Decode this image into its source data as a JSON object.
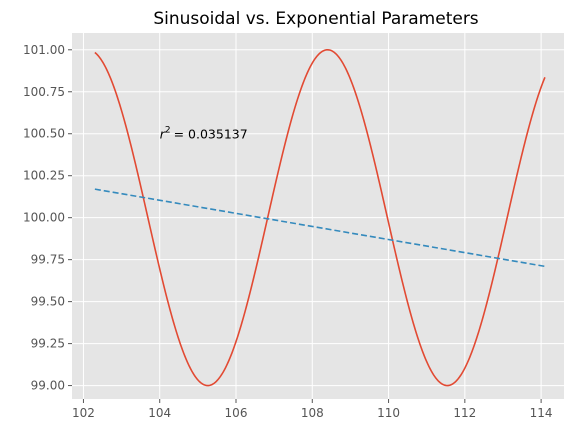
{
  "chart_data": {
    "type": "line",
    "title": "Sinusoidal vs. Exponential Parameters",
    "xlabel": "",
    "ylabel": "",
    "xlim": [
      101.7,
      114.6
    ],
    "ylim": [
      98.92,
      101.1
    ],
    "x_ticks": [
      102,
      104,
      106,
      108,
      110,
      112,
      114
    ],
    "x_tick_labels": [
      "102",
      "104",
      "106",
      "108",
      "110",
      "112",
      "114"
    ],
    "y_ticks": [
      99.0,
      99.25,
      99.5,
      99.75,
      100.0,
      100.25,
      100.5,
      100.75,
      101.0
    ],
    "y_tick_labels": [
      "99.00",
      "99.25",
      "99.50",
      "99.75",
      "100.00",
      "100.25",
      "100.50",
      "100.75",
      "101.00"
    ],
    "grid": true,
    "style": "ggplot",
    "series": [
      {
        "style": "solid",
        "color": "#E24A33",
        "curve": "sinusoid",
        "x_start": 102.3,
        "x_end": 114.1,
        "amplitude": 1.0,
        "center": 100.0,
        "period": 6.28,
        "peak_x": 108.4,
        "points": [
          [
            102.3,
            100.98
          ],
          [
            103.2,
            100.57
          ],
          [
            104.0,
            99.65
          ],
          [
            104.7,
            99.12
          ],
          [
            105.2,
            99.0
          ],
          [
            106.0,
            99.35
          ],
          [
            106.8,
            100.0
          ],
          [
            107.6,
            100.76
          ],
          [
            108.4,
            101.0
          ],
          [
            109.2,
            100.72
          ],
          [
            110.0,
            100.0
          ],
          [
            110.8,
            99.3
          ],
          [
            111.55,
            99.0
          ],
          [
            112.3,
            99.34
          ],
          [
            113.2,
            100.17
          ],
          [
            114.1,
            100.83
          ]
        ]
      },
      {
        "style": "dashed",
        "color": "#348ABD",
        "curve": "linear",
        "points": [
          [
            102.3,
            100.17
          ],
          [
            114.1,
            99.71
          ]
        ]
      }
    ],
    "annotations": [
      {
        "text": "= 0.035137",
        "math_prefix": "r",
        "superscript": "2",
        "x": 104.0,
        "y": 100.5
      }
    ]
  }
}
